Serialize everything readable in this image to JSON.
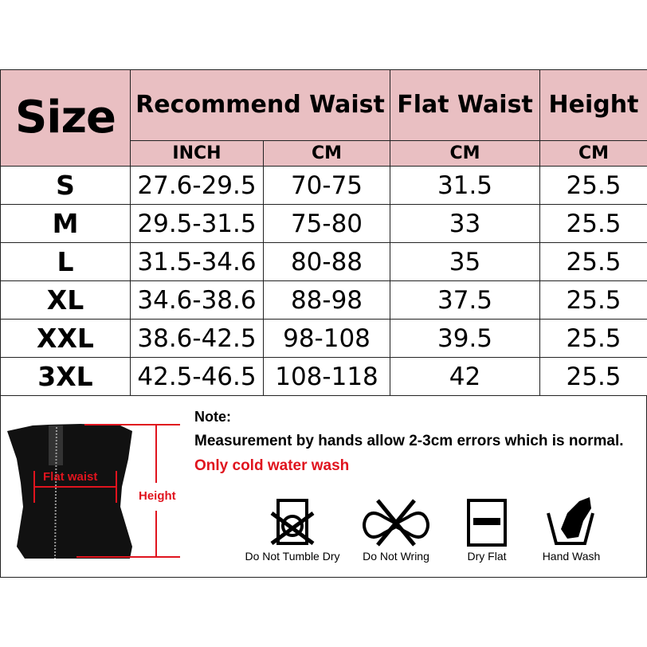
{
  "header": {
    "size": "Size",
    "recommend_waist": "Recommend Waist",
    "flat_waist": "Flat Waist",
    "height": "Height",
    "sub": [
      "INCH",
      "CM",
      "CM",
      "CM"
    ]
  },
  "rows": [
    {
      "size": "S",
      "inch": "27.6-29.5",
      "cm": "70-75",
      "flat": "31.5",
      "height": "25.5"
    },
    {
      "size": "M",
      "inch": "29.5-31.5",
      "cm": "75-80",
      "flat": "33",
      "height": "25.5"
    },
    {
      "size": "L",
      "inch": "31.5-34.6",
      "cm": "80-88",
      "flat": "35",
      "height": "25.5"
    },
    {
      "size": "XL",
      "inch": "34.6-38.6",
      "cm": "88-98",
      "flat": "37.5",
      "height": "25.5"
    },
    {
      "size": "XXL",
      "inch": "38.6-42.5",
      "cm": "98-108",
      "flat": "39.5",
      "height": "25.5"
    },
    {
      "size": "3XL",
      "inch": "42.5-46.5",
      "cm": "108-118",
      "flat": "42",
      "height": "25.5"
    }
  ],
  "figure": {
    "flat_waist_label": "Flat waist",
    "height_label": "Height",
    "accent": "#e0141e",
    "header_bg": "#e9bfc2"
  },
  "notes": {
    "title": "Note:",
    "line1": "Measurement by hands allow 2-3cm errors which is normal.",
    "line2": "Only cold water wash"
  },
  "care": [
    {
      "icon": "do-not-tumble-dry-icon",
      "label": "Do Not Tumble Dry"
    },
    {
      "icon": "do-not-wring-icon",
      "label": "Do Not Wring"
    },
    {
      "icon": "dry-flat-icon",
      "label": "Dry Flat"
    },
    {
      "icon": "hand-wash-icon",
      "label": "Hand Wash"
    }
  ]
}
